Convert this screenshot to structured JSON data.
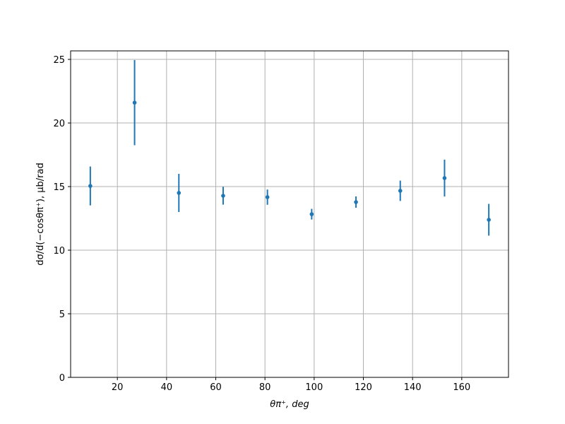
{
  "chart_data": {
    "type": "errorbar",
    "xlabel": "θπ⁺, deg",
    "ylabel": "dσ/d(−cosθπ⁺), μb/rad",
    "x": [
      9,
      27,
      45,
      63,
      81,
      99,
      117,
      135,
      153,
      171
    ],
    "values": [
      15.05,
      21.6,
      14.5,
      14.28,
      14.17,
      12.83,
      13.78,
      14.67,
      15.67,
      12.39
    ],
    "errors": [
      1.53,
      3.35,
      1.5,
      0.7,
      0.6,
      0.42,
      0.45,
      0.8,
      1.45,
      1.25
    ],
    "color": "#1f77b4",
    "xlim": [
      1,
      179
    ],
    "ylim": [
      0,
      25.67
    ],
    "xticks": [
      20,
      40,
      60,
      80,
      100,
      120,
      140,
      160
    ],
    "yticks": [
      0,
      5,
      10,
      15,
      20,
      25
    ],
    "grid": true
  }
}
